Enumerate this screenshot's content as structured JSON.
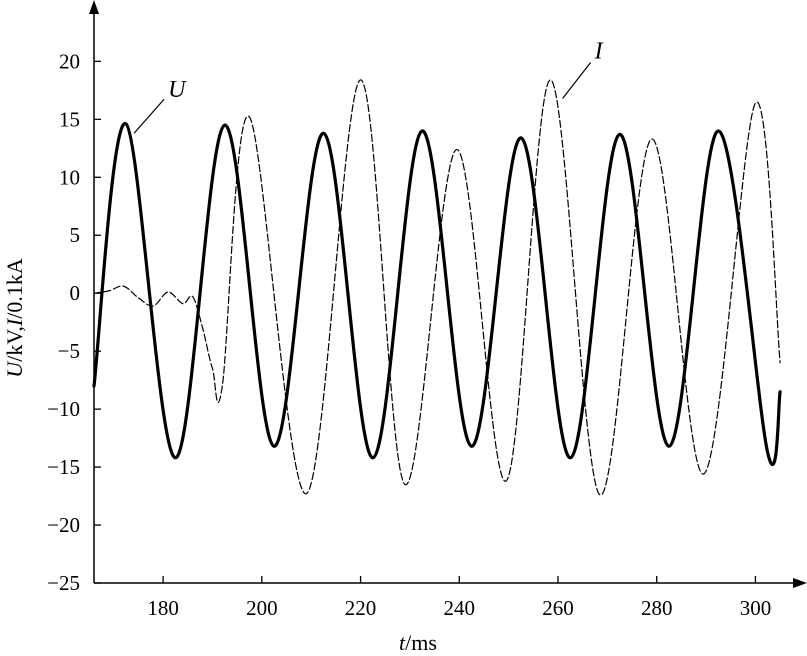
{
  "chart_data": {
    "type": "line",
    "xlabel_italic": "t",
    "xlabel_rest": "/ms",
    "ylabel_italic_1": "U",
    "ylabel_mid": "/kV,",
    "ylabel_italic_2": "I",
    "ylabel_rest": "/0.1kA",
    "xlim": [
      166,
      307
    ],
    "ylim": [
      -25,
      24
    ],
    "x_ticks": [
      180,
      200,
      220,
      240,
      260,
      280,
      300
    ],
    "y_ticks": [
      20,
      15,
      10,
      5,
      0,
      -5,
      -10,
      -15,
      -20,
      -25
    ],
    "series": [
      {
        "name": "U",
        "style": "solid",
        "color": "#000000",
        "x": [
          166,
          172.5,
          182.5,
          192.5,
          202.5,
          212.5,
          222.5,
          232.5,
          242.5,
          252.5,
          262.5,
          272.5,
          282.5,
          292.5,
          302.5,
          305
        ],
        "y": [
          -8,
          14.6,
          -14.2,
          14.5,
          -13.2,
          13.8,
          -14.2,
          14.0,
          -13.2,
          13.4,
          -14.2,
          13.7,
          -13.2,
          14.0,
          -13.8,
          -8.5
        ]
      },
      {
        "name": "I",
        "style": "dashed",
        "color": "#000000",
        "x": [
          166,
          169,
          172,
          175,
          178,
          181,
          184,
          186,
          188,
          190,
          192,
          197.5,
          209,
          220,
          229,
          239.5,
          249.5,
          258.5,
          268.5,
          279,
          289.5,
          300,
          305
        ],
        "y": [
          0,
          0.2,
          0.6,
          -0.4,
          -1.1,
          0.1,
          -0.9,
          -0.3,
          -3.0,
          -6.5,
          -8.0,
          15.2,
          -17.3,
          18.4,
          -16.5,
          12.4,
          -16.2,
          18.4,
          -17.4,
          13.3,
          -15.6,
          16.4,
          -6.0
        ]
      }
    ]
  }
}
